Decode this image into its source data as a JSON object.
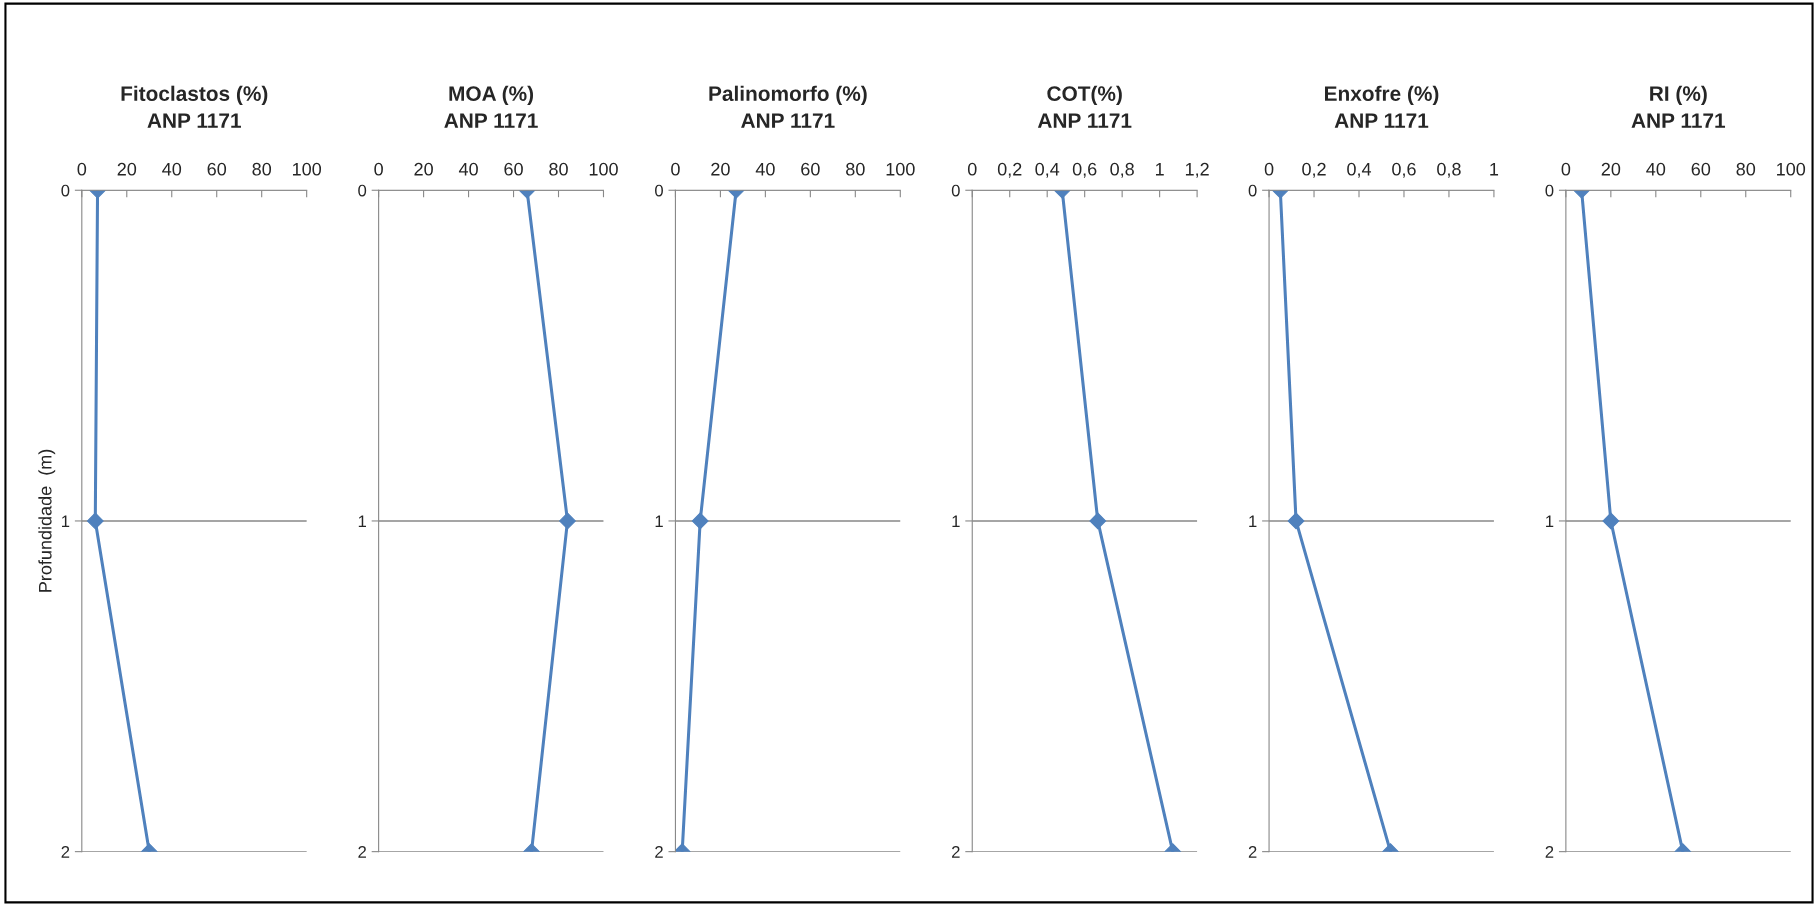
{
  "chart_data": [
    {
      "type": "line",
      "orientation": "horizontal",
      "title": "Fitoclastos (%)\nANP 1171",
      "ylabel": "Profundidade  (m)",
      "x": [
        0,
        1,
        2
      ],
      "series": [
        {
          "color": "#4f81bd",
          "values": [
            7,
            6,
            30
          ]
        }
      ],
      "xlim": [
        0,
        100
      ],
      "xticks": [
        0,
        20,
        40,
        60,
        80,
        100
      ],
      "ylim": [
        2,
        0
      ],
      "yticks": [
        0,
        1,
        2
      ],
      "grid": "y",
      "marker": "diamond",
      "line_style": "solid"
    },
    {
      "type": "line",
      "orientation": "horizontal",
      "title": "MOA (%)\nANP 1171",
      "x": [
        0,
        1,
        2
      ],
      "series": [
        {
          "color": "#4f81bd",
          "values": [
            66,
            84,
            68
          ]
        }
      ],
      "xlim": [
        0,
        100
      ],
      "xticks": [
        0,
        20,
        40,
        60,
        80,
        100
      ],
      "ylim": [
        2,
        0
      ],
      "yticks": [
        0,
        1,
        2
      ],
      "grid": "y",
      "marker": "diamond",
      "line_style": "solid"
    },
    {
      "type": "line",
      "orientation": "horizontal",
      "title": "Palinomorfo (%)\nANP 1171",
      "x": [
        0,
        1,
        2
      ],
      "series": [
        {
          "color": "#4f81bd",
          "values": [
            27,
            11,
            3
          ]
        }
      ],
      "xlim": [
        0,
        100
      ],
      "xticks": [
        0,
        20,
        40,
        60,
        80,
        100
      ],
      "ylim": [
        2,
        0
      ],
      "yticks": [
        0,
        1,
        2
      ],
      "grid": "y",
      "marker": "diamond",
      "line_style": "solid"
    },
    {
      "type": "line",
      "orientation": "horizontal",
      "title": "COT(%)\nANP 1171",
      "x": [
        0,
        1,
        2
      ],
      "series": [
        {
          "color": "#4f81bd",
          "values": [
            0.48,
            0.67,
            1.07
          ]
        }
      ],
      "xlim": [
        0,
        1.2
      ],
      "xticks": [
        0,
        {
          "value": 0.2,
          "label": "0,2"
        },
        {
          "value": 0.4,
          "label": "0,4"
        },
        {
          "value": 0.6,
          "label": "0,6"
        },
        {
          "value": 0.8,
          "label": "0,8"
        },
        1,
        {
          "value": 1.2,
          "label": "1,2"
        }
      ],
      "ylim": [
        2,
        0
      ],
      "yticks": [
        0,
        1,
        2
      ],
      "grid": "y",
      "marker": "diamond",
      "line_style": "solid"
    },
    {
      "type": "line",
      "orientation": "horizontal",
      "title": "Enxofre (%)\nANP 1171",
      "x": [
        0,
        1,
        2
      ],
      "series": [
        {
          "color": "#4f81bd",
          "values": [
            0.05,
            0.12,
            0.54
          ]
        }
      ],
      "xlim": [
        0,
        1
      ],
      "xticks": [
        0,
        {
          "value": 0.2,
          "label": "0,2"
        },
        {
          "value": 0.4,
          "label": "0,4"
        },
        {
          "value": 0.6,
          "label": "0,6"
        },
        {
          "value": 0.8,
          "label": "0,8"
        },
        1
      ],
      "ylim": [
        2,
        0
      ],
      "yticks": [
        0,
        1,
        2
      ],
      "grid": "y",
      "marker": "diamond",
      "line_style": "solid"
    },
    {
      "type": "line",
      "orientation": "horizontal",
      "title": "RI (%)\nANP 1171",
      "x": [
        0,
        1,
        2
      ],
      "series": [
        {
          "color": "#4f81bd",
          "values": [
            7,
            20,
            52
          ]
        }
      ],
      "xlim": [
        0,
        100
      ],
      "xticks": [
        0,
        20,
        40,
        60,
        80,
        100
      ],
      "ylim": [
        2,
        0
      ],
      "yticks": [
        0,
        1,
        2
      ],
      "grid": "y",
      "marker": "diamond",
      "line_style": "solid"
    }
  ]
}
